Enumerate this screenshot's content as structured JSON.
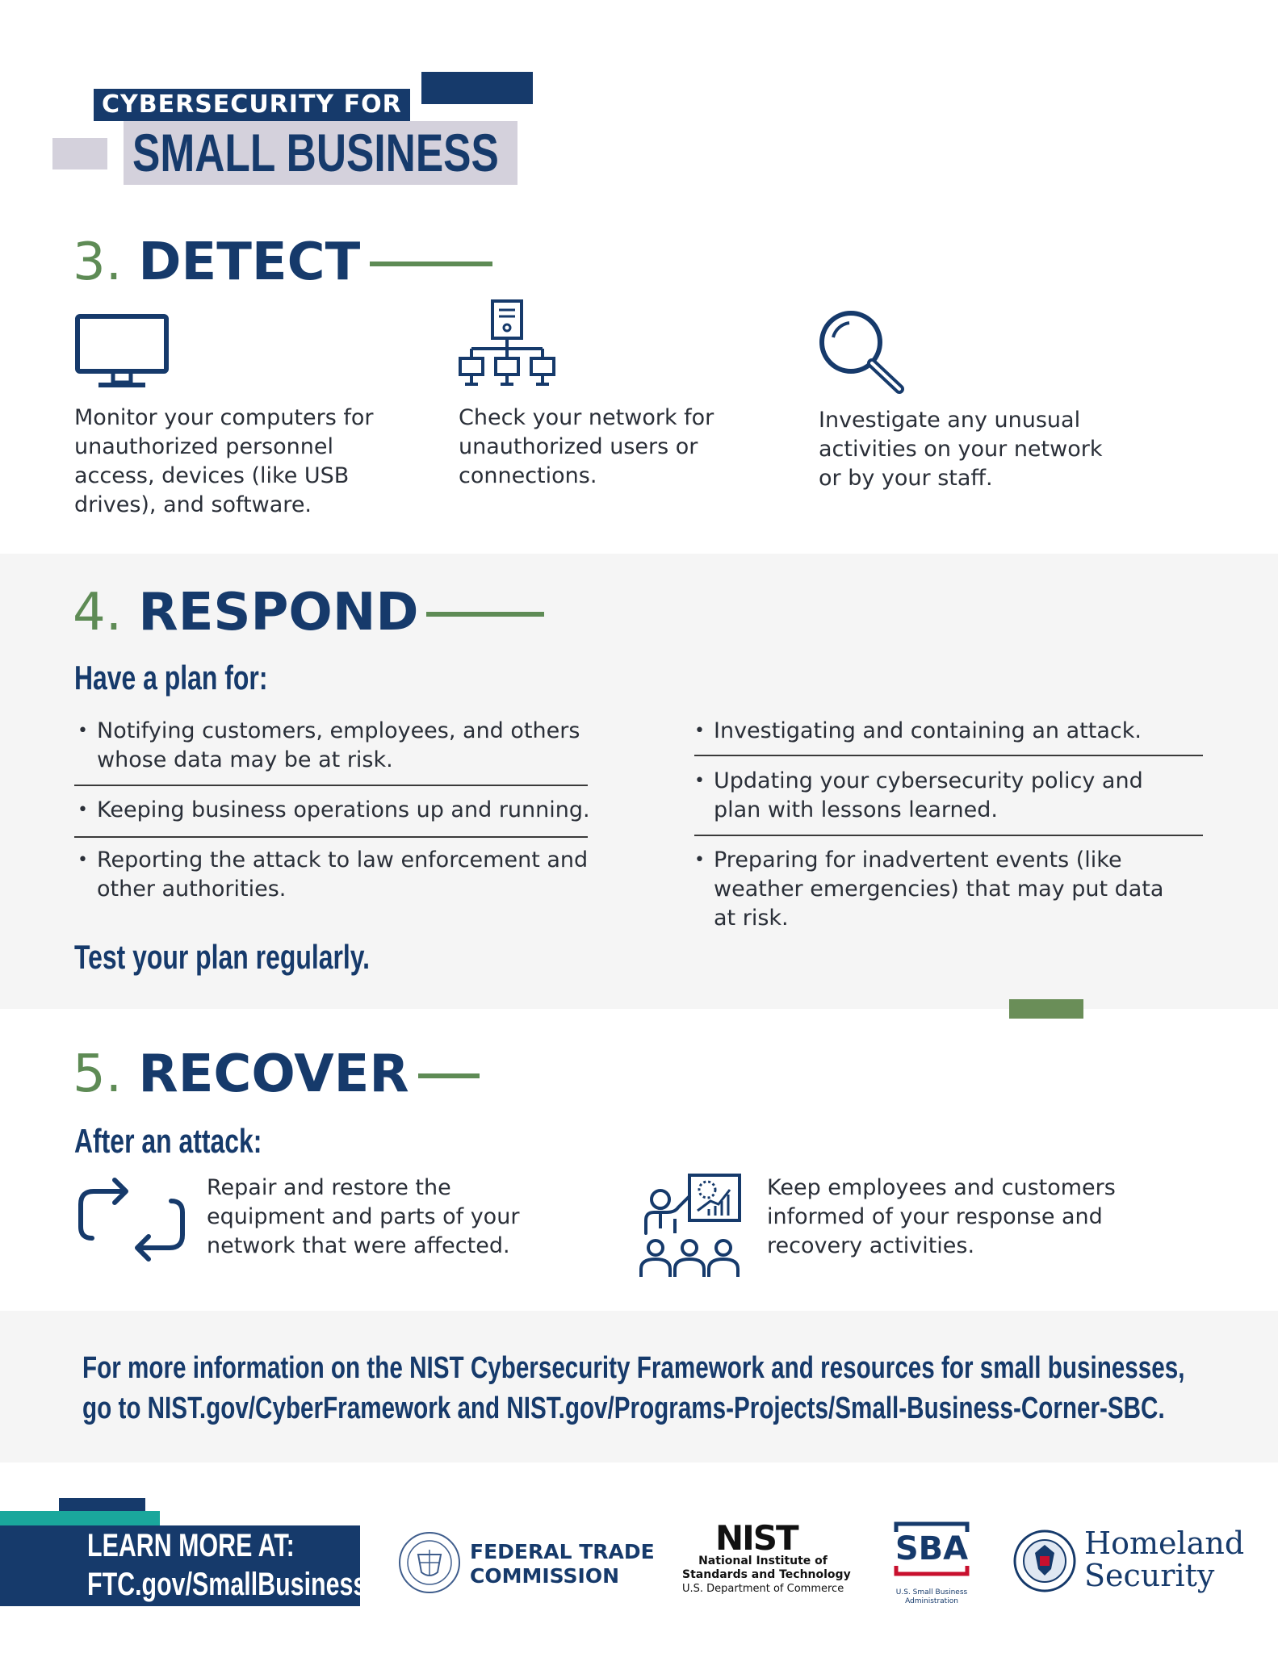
{
  "header": {
    "tag": "CYBERSECURITY FOR",
    "title": "SMALL BUSINESS"
  },
  "detect": {
    "number": "3.",
    "word": "DETECT",
    "items": [
      {
        "icon": "monitor-icon",
        "text": "Monitor your computers for unauthorized personnel access, devices (like USB drives), and software."
      },
      {
        "icon": "network-icon",
        "text": "Check your network for unauthorized users or connections."
      },
      {
        "icon": "magnifier-icon",
        "text": "Investigate any unusual activities on your network or by your staff."
      }
    ]
  },
  "respond": {
    "number": "4.",
    "word": "RESPOND",
    "plan_heading": "Have a plan for:",
    "left": [
      "Notifying customers, employees, and others whose data may be at risk.",
      "Keeping business operations up and running.",
      "Reporting the attack to law enforcement and other authorities."
    ],
    "right": [
      "Investigating and containing an attack.",
      "Updating your cybersecurity policy and plan with lessons learned.",
      "Preparing for inadvertent events (like weather emergencies) that may put data at risk."
    ],
    "test": "Test your plan regularly."
  },
  "recover": {
    "number": "5.",
    "word": "RECOVER",
    "after": "After an attack:",
    "items": [
      {
        "icon": "refresh-icon",
        "text": "Repair and restore the equipment and parts of your network that were affected."
      },
      {
        "icon": "presentation-icon",
        "text": "Keep employees and customers informed of your response and recovery activities."
      }
    ]
  },
  "info": {
    "line1": "For more information on the NIST Cybersecurity Framework and resources for small businesses,",
    "line2": "go to NIST.gov/CyberFramework and NIST.gov/Programs-Projects/Small-Business-Corner-SBC."
  },
  "footer": {
    "learn1": "LEARN MORE AT:",
    "learn2": "FTC.gov/SmallBusiness",
    "ftc1": "FEDERAL TRADE",
    "ftc2": "COMMISSION",
    "nist": "NIST",
    "nist1": "National Institute of",
    "nist2": "Standards and Technology",
    "nist3": "U.S. Department of Commerce",
    "sba": "SBA",
    "sba1": "U.S. Small Business",
    "sba2": "Administration",
    "dhs1": "Homeland",
    "dhs2": "Security"
  }
}
